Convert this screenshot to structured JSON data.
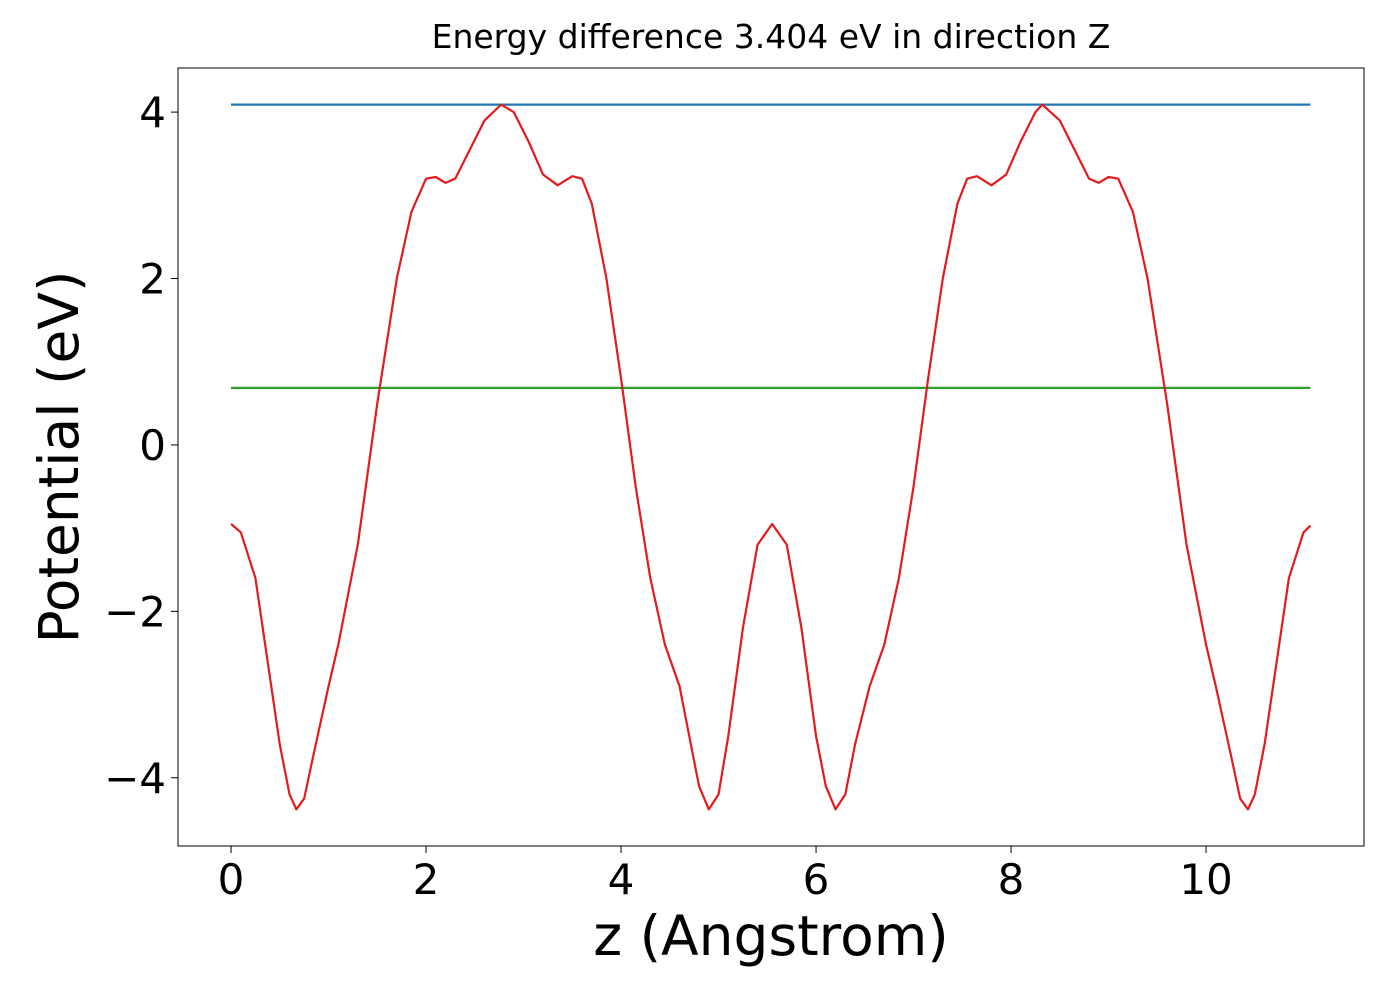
{
  "chart_data": {
    "type": "line",
    "title": "Energy difference 3.404 eV in direction Z",
    "x_label": "z (Angstrom)",
    "y_label": "Potential (eV)",
    "xlim": [
      -0.544,
      11.62
    ],
    "ylim": [
      -4.82,
      4.53
    ],
    "xticks": [
      0,
      2,
      4,
      6,
      8,
      10
    ],
    "yticks": [
      {
        "value": -4,
        "label": "−4"
      },
      {
        "value": -2,
        "label": "−2"
      },
      0,
      2,
      4
    ],
    "grid": false,
    "series": [
      {
        "color": "#1f77b4",
        "x": [
          0,
          11.07
        ],
        "values": [
          4.09,
          4.09
        ]
      },
      {
        "color": "#2ca02c",
        "x": [
          0,
          11.07
        ],
        "values": [
          0.686,
          0.686
        ]
      },
      {
        "color": "#e41a1c",
        "x": [
          0,
          0.1,
          0.25,
          0.4,
          0.5,
          0.6,
          0.67,
          0.75,
          0.85,
          1.0,
          1.1,
          1.3,
          1.5,
          1.7,
          1.85,
          2.0,
          2.1,
          2.2,
          2.3,
          2.45,
          2.6,
          2.77,
          2.9,
          3.05,
          3.2,
          3.35,
          3.5,
          3.6,
          3.7,
          3.85,
          4.0,
          4.15,
          4.3,
          4.45,
          4.6,
          4.7,
          4.8,
          4.9,
          5.0,
          5.1,
          5.25,
          5.4,
          5.55,
          5.7,
          5.85,
          6.0,
          6.1,
          6.2,
          6.3,
          6.4,
          6.55,
          6.7,
          6.85,
          7.0,
          7.15,
          7.3,
          7.45,
          7.55,
          7.65,
          7.8,
          7.95,
          8.1,
          8.25,
          8.32,
          8.5,
          8.65,
          8.8,
          8.9,
          9.0,
          9.1,
          9.25,
          9.4,
          9.6,
          9.8,
          10.0,
          10.1,
          10.25,
          10.35,
          10.43,
          10.5,
          10.6,
          10.7,
          10.85,
          11.0,
          11.07
        ],
        "values": [
          -0.95,
          -1.05,
          -1.6,
          -2.8,
          -3.6,
          -4.2,
          -4.38,
          -4.25,
          -3.7,
          -2.9,
          -2.4,
          -1.2,
          0.5,
          2.0,
          2.8,
          3.2,
          3.22,
          3.15,
          3.2,
          3.55,
          3.9,
          4.09,
          4.0,
          3.65,
          3.25,
          3.12,
          3.23,
          3.2,
          2.9,
          2.0,
          0.8,
          -0.5,
          -1.6,
          -2.4,
          -2.9,
          -3.5,
          -4.1,
          -4.38,
          -4.2,
          -3.5,
          -2.2,
          -1.2,
          -0.95,
          -1.2,
          -2.2,
          -3.5,
          -4.1,
          -4.38,
          -4.2,
          -3.6,
          -2.9,
          -2.4,
          -1.6,
          -0.5,
          0.8,
          2.0,
          2.9,
          3.2,
          3.23,
          3.12,
          3.25,
          3.65,
          4.0,
          4.09,
          3.9,
          3.55,
          3.2,
          3.15,
          3.22,
          3.2,
          2.8,
          2.0,
          0.5,
          -1.2,
          -2.4,
          -2.9,
          -3.7,
          -4.25,
          -4.38,
          -4.2,
          -3.6,
          -2.8,
          -1.6,
          -1.05,
          -0.97
        ]
      }
    ]
  }
}
